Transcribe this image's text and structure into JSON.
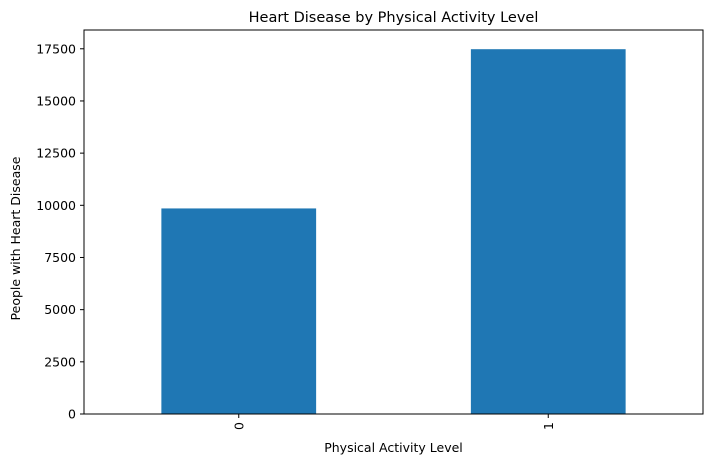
{
  "chart_data": {
    "type": "bar",
    "title": "Heart Disease by Physical Activity Level",
    "xlabel": "Physical Activity Level",
    "ylabel": "People with Heart Disease",
    "categories": [
      "0",
      "1"
    ],
    "values": [
      9850,
      17480
    ],
    "ylim": [
      0,
      18400
    ],
    "yticks": [
      0,
      2500,
      5000,
      7500,
      10000,
      12500,
      15000,
      17500
    ],
    "ytick_labels": [
      "0",
      "2500",
      "5000",
      "7500",
      "10000",
      "12500",
      "15000",
      "17500"
    ],
    "xtick_rotation": "vertical",
    "grid": false,
    "legend": "none",
    "bar_color": "#1f77b4"
  }
}
